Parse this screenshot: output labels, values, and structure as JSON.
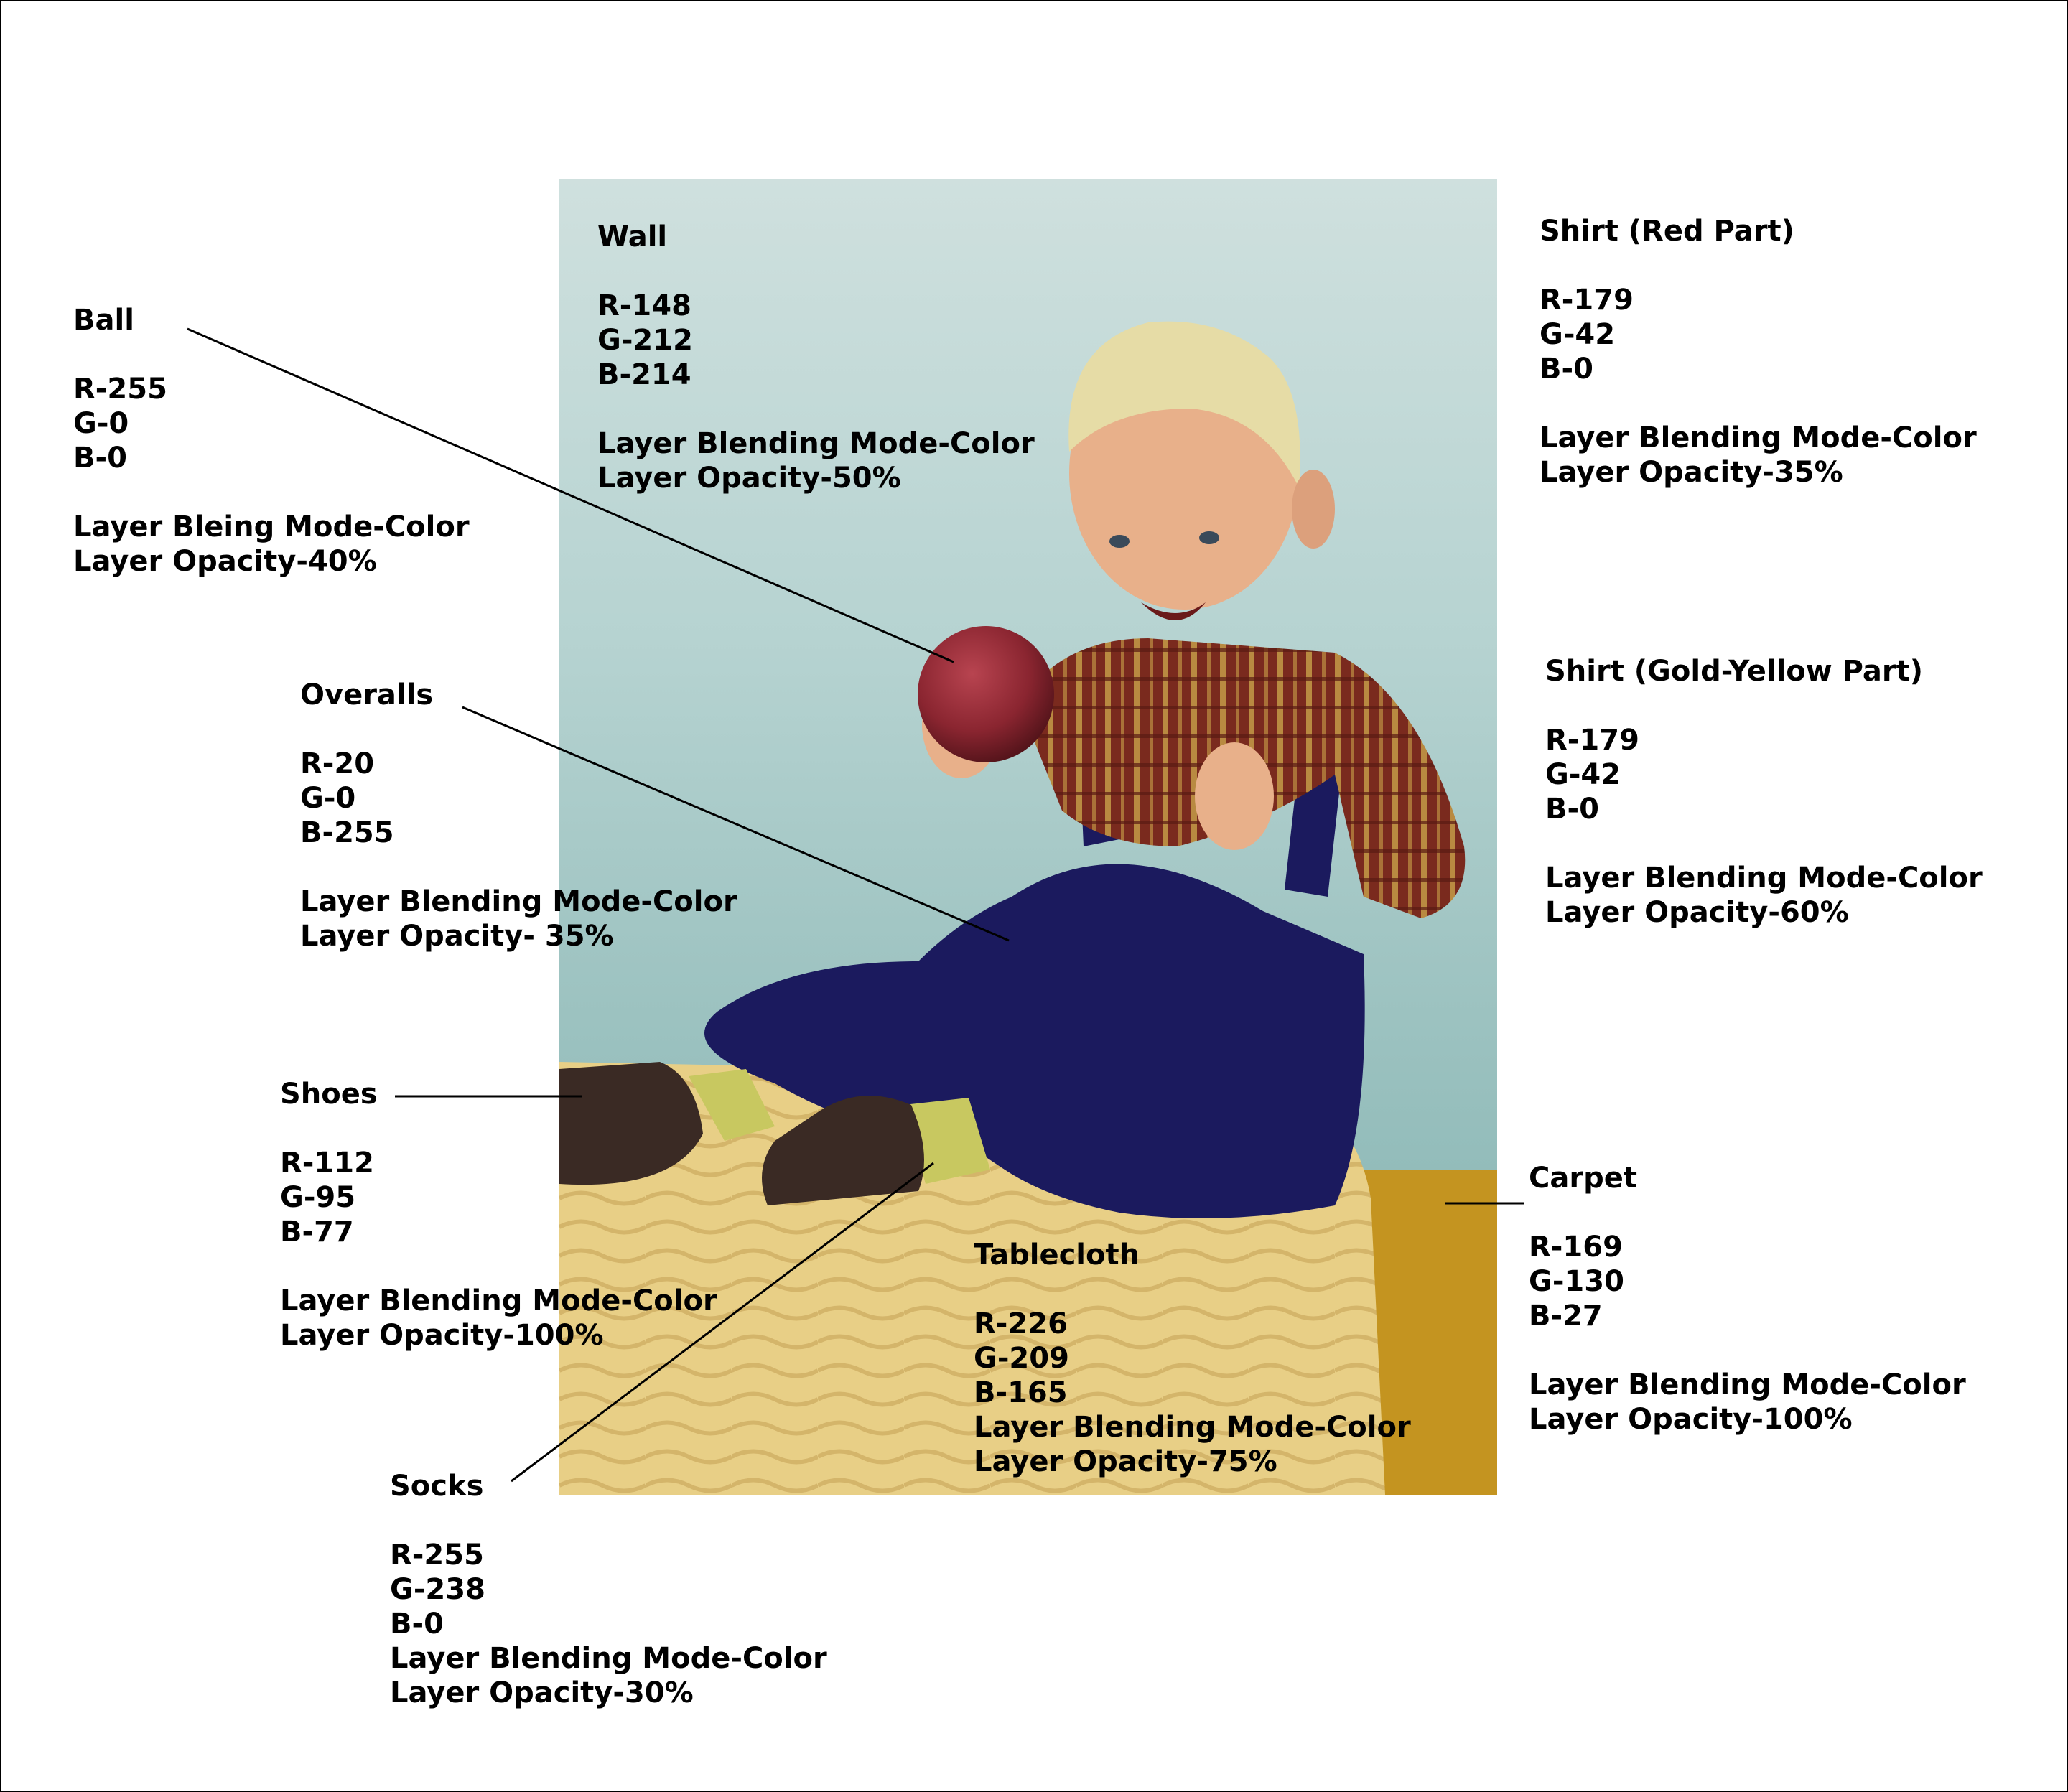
{
  "labels": {
    "wall": {
      "title": "Wall",
      "r": "R-148",
      "g": "G-212",
      "b": "B-214",
      "mode": "Layer Blending Mode-Color",
      "opacity": "Layer Opacity-50%"
    },
    "ball": {
      "title": "Ball",
      "r": "R-255",
      "g": "G-0",
      "b": "B-0",
      "mode": "Layer Bleing Mode-Color",
      "opacity": "Layer Opacity-40%"
    },
    "shirt_red": {
      "title": "Shirt (Red Part)",
      "r": "R-179",
      "g": "G-42",
      "b": "B-0",
      "mode": "Layer Blending Mode-Color",
      "opacity": "Layer Opacity-35%"
    },
    "shirt_gold": {
      "title": "Shirt (Gold-Yellow Part)",
      "r": "R-179",
      "g": "G-42",
      "b": "B-0",
      "mode": "Layer Blending Mode-Color",
      "opacity": "Layer Opacity-60%"
    },
    "overalls": {
      "title": "Overalls",
      "r": "R-20",
      "g": "G-0",
      "b": "B-255",
      "mode": "Layer Blending Mode-Color",
      "opacity": "Layer Opacity- 35%"
    },
    "shoes": {
      "title": "Shoes",
      "r": "R-112",
      "g": "G-95",
      "b": "B-77",
      "mode": "Layer Blending Mode-Color",
      "opacity": "Layer Opacity-100%"
    },
    "carpet": {
      "title": "Carpet",
      "r": "R-169",
      "g": "G-130",
      "b": "B-27",
      "mode": "Layer Blending Mode-Color",
      "opacity": "Layer Opacity-100%"
    },
    "tablecloth": {
      "title": "Tablecloth",
      "r": "R-226",
      "g": "G-209",
      "b": "B-165",
      "mode": "Layer Blending Mode-Color",
      "opacity": "Layer Opacity-75%"
    },
    "socks": {
      "title": "Socks",
      "r": "R-255",
      "g": "G-238",
      "b": "B-0",
      "mode": "Layer Blending Mode-Color",
      "opacity": "Layer Opacity-30%"
    }
  },
  "colors": {
    "wall": "#94d4d6",
    "ball": "#8a2530",
    "shirt": "#7a2a1e",
    "overalls": "#1b1a5e",
    "tablecloth": "#e8cf86",
    "carpet": "#c49420",
    "socks": "#c8c860",
    "shoes": "#3a2a24",
    "skin": "#e8b08a",
    "hair": "#e6dca6"
  }
}
